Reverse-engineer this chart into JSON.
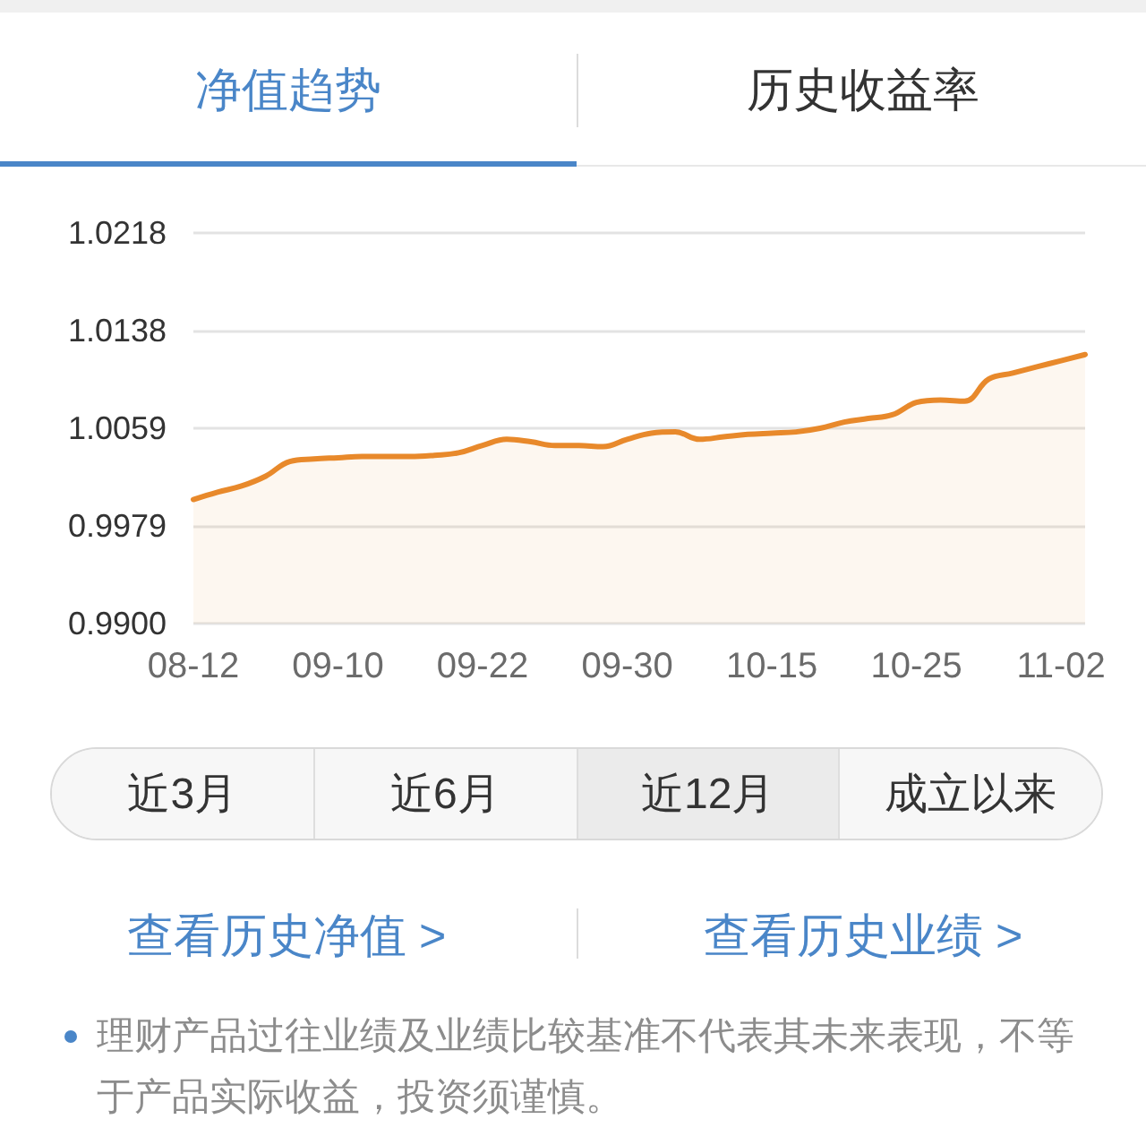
{
  "chart_data": {
    "type": "area",
    "title": "净值趋势",
    "annotations": [
      "历史收益率",
      "近3月",
      "近6月",
      "近12月",
      "成立以来",
      "查看历史净值 >",
      "查看历史业绩 >",
      "理财产品过往业绩及业绩比较基准不代表其未来表现，不等于产品实际收益，投资须谨慎。"
    ],
    "categories": [
      "08-12",
      null,
      null,
      null,
      null,
      null,
      "09-10",
      null,
      null,
      null,
      null,
      null,
      "09-22",
      null,
      null,
      null,
      null,
      null,
      "09-30",
      null,
      null,
      null,
      null,
      null,
      "10-15",
      null,
      null,
      null,
      null,
      null,
      "10-25",
      null,
      null,
      null,
      null,
      null,
      "11-02",
      null
    ],
    "values": [
      1.0001,
      1.0007,
      1.0012,
      1.002,
      1.0032,
      1.0034,
      1.0035,
      1.0036,
      1.0036,
      1.0036,
      1.0037,
      1.0039,
      1.0045,
      1.005,
      1.0048,
      1.0045,
      1.0045,
      1.0044,
      1.005,
      1.0055,
      1.0056,
      1.005,
      1.0052,
      1.0054,
      1.0055,
      1.0056,
      1.0059,
      1.0064,
      1.0067,
      1.007,
      1.008,
      1.0082,
      1.0081,
      1.0099,
      1.0104,
      1.0109,
      1.0114,
      1.0119
    ],
    "color": "#e8892b",
    "ylim": [
      0.99,
      1.0218
    ],
    "yticks": [
      {
        "value": 0.99,
        "label": "0.9900"
      },
      {
        "value": 0.99795,
        "label": "0.9979"
      },
      {
        "value": 1.0059,
        "label": "1.0059"
      },
      {
        "value": 1.01385,
        "label": "1.0138"
      },
      {
        "value": 1.0218,
        "label": "1.0218"
      }
    ],
    "grid": "y"
  }
}
